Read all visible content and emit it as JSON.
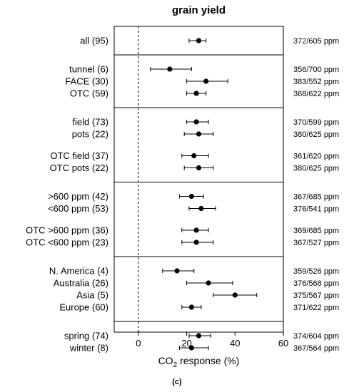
{
  "chart_data": {
    "type": "forest",
    "title": "grain yield",
    "xlabel": "CO2 response (%)",
    "xlabel_main": "CO",
    "xlabel_sub": "2",
    "xlabel_rest": " response (%)",
    "panel_label": "(c)",
    "xlim": [
      -10,
      60
    ],
    "xticks": [
      0,
      20,
      40,
      60
    ],
    "reference_line": 0,
    "groups": [
      {
        "rows": [
          {
            "label": "all (95)",
            "value": 25,
            "low": 21,
            "high": 28,
            "ppm": "372/605 ppm"
          }
        ]
      },
      {
        "rows": [
          {
            "label": "tunnel (6)",
            "value": 13,
            "low": 5,
            "high": 22,
            "ppm": "356/700 ppm"
          },
          {
            "label": "FACE (30)",
            "value": 28,
            "low": 20,
            "high": 37,
            "ppm": "383/552 ppm"
          },
          {
            "label": "OTC (59)",
            "value": 24,
            "low": 20,
            "high": 28,
            "ppm": "368/622 ppm"
          }
        ]
      },
      {
        "rows": [
          {
            "label": "field (73)",
            "value": 24,
            "low": 20,
            "high": 29,
            "ppm": "370/599 ppm"
          },
          {
            "label": "pots (22)",
            "value": 25,
            "low": 19,
            "high": 31,
            "ppm": "380/625 ppm",
            "gap_after": true
          },
          {
            "label": "OTC field (37)",
            "value": 23,
            "low": 18,
            "high": 29,
            "ppm": "361/620 ppm"
          },
          {
            "label": "OTC pots (22)",
            "value": 25,
            "low": 19,
            "high": 31,
            "ppm": "380/625 ppm"
          }
        ]
      },
      {
        "rows": [
          {
            "label": ">600 ppm (42)",
            "value": 22,
            "low": 17,
            "high": 27,
            "ppm": "367/685 ppm"
          },
          {
            "label": "<600 ppm (53)",
            "value": 26,
            "low": 21,
            "high": 32,
            "ppm": "376/541 ppm",
            "gap_after": true
          },
          {
            "label": "OTC >600 ppm  (36)",
            "value": 24,
            "low": 18,
            "high": 29,
            "ppm": "369/685 ppm"
          },
          {
            "label": "OTC <600 ppm  (23)",
            "value": 24,
            "low": 18,
            "high": 31,
            "ppm": "367/527 ppm"
          }
        ]
      },
      {
        "rows": [
          {
            "label": "N. America (4)",
            "value": 16,
            "low": 10,
            "high": 23,
            "ppm": "359/526 ppm"
          },
          {
            "label": "Australia (26)",
            "value": 29,
            "low": 20,
            "high": 39,
            "ppm": "376/568 ppm"
          },
          {
            "label": "Asia (5)",
            "value": 40,
            "low": 31,
            "high": 49,
            "ppm": "375/567 ppm"
          },
          {
            "label": "Europe (60)",
            "value": 22,
            "low": 18,
            "high": 26,
            "ppm": "371/622 ppm"
          }
        ]
      },
      {
        "rows": [
          {
            "label": "spring (74)",
            "value": 25,
            "low": 21,
            "high": 30,
            "ppm": "374/604 ppm"
          },
          {
            "label": "winter (8)",
            "value": 22,
            "low": 17,
            "high": 29,
            "ppm": "367/564 ppm"
          }
        ]
      }
    ]
  }
}
